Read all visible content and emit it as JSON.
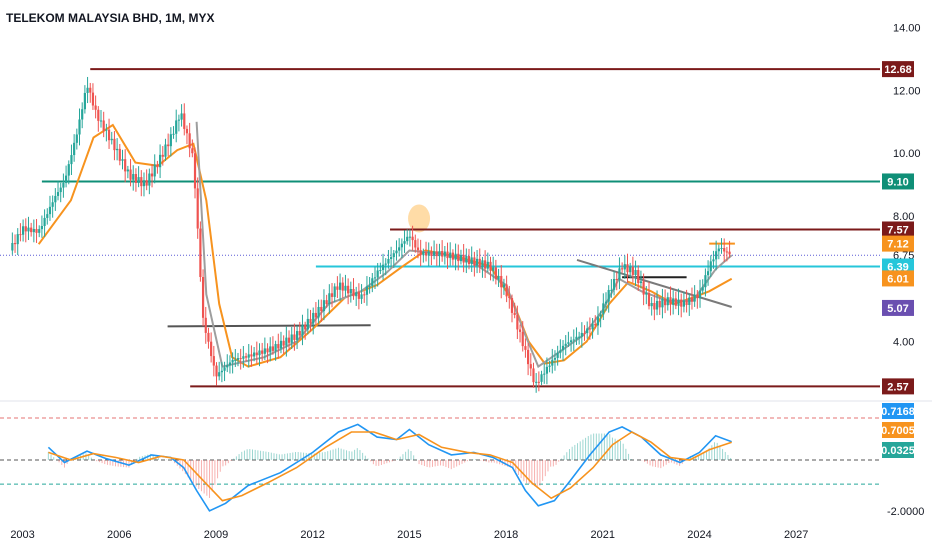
{
  "chart_data": {
    "type": "line",
    "title": "TELEKOM MALAYSIA BHD, 1M, MYX",
    "xlabel": "",
    "ylabel": "",
    "x_ticks": [
      "2003",
      "2006",
      "2009",
      "2012",
      "2015",
      "2018",
      "2021",
      "2024",
      "2027"
    ],
    "xlim": [
      2002.3,
      2029.6
    ],
    "price_panel": {
      "ylim": [
        2.2,
        14.5
      ],
      "y_ticks": [
        "14.00",
        "12.00",
        "10.00",
        "8.00",
        "6.75",
        "4.00"
      ],
      "y_tick_values": [
        14.0,
        12.0,
        10.0,
        8.0,
        6.75,
        4.0
      ],
      "last_price": 6.75,
      "series": [
        {
          "kind": "price",
          "color": "#26a69a",
          "down_color": "#ef5350",
          "points": [
            [
              2002.6,
              6.9
            ],
            [
              2003.0,
              7.6
            ],
            [
              2003.5,
              7.5
            ],
            [
              2004.0,
              8.6
            ],
            [
              2004.3,
              9.1
            ],
            [
              2004.7,
              10.7
            ],
            [
              2005.0,
              12.2
            ],
            [
              2005.3,
              11.2
            ],
            [
              2005.8,
              10.3
            ],
            [
              2006.3,
              9.3
            ],
            [
              2006.8,
              9.0
            ],
            [
              2007.2,
              9.7
            ],
            [
              2007.6,
              10.5
            ],
            [
              2007.9,
              11.3
            ],
            [
              2008.3,
              9.8
            ],
            [
              2008.6,
              4.7
            ],
            [
              2009.0,
              2.9
            ],
            [
              2009.5,
              3.4
            ],
            [
              2010.2,
              3.6
            ],
            [
              2010.8,
              3.8
            ],
            [
              2011.5,
              4.2
            ],
            [
              2012.2,
              5.0
            ],
            [
              2012.8,
              5.8
            ],
            [
              2013.5,
              5.4
            ],
            [
              2014.0,
              6.2
            ],
            [
              2014.6,
              6.9
            ],
            [
              2015.0,
              7.4
            ],
            [
              2015.3,
              6.8
            ],
            [
              2016.0,
              6.8
            ],
            [
              2016.8,
              6.6
            ],
            [
              2017.5,
              6.4
            ],
            [
              2018.0,
              5.6
            ],
            [
              2018.5,
              4.0
            ],
            [
              2018.9,
              2.6
            ],
            [
              2019.3,
              3.2
            ],
            [
              2019.8,
              3.9
            ],
            [
              2020.3,
              4.2
            ],
            [
              2020.8,
              4.6
            ],
            [
              2021.2,
              5.6
            ],
            [
              2021.6,
              6.4
            ],
            [
              2022.0,
              6.2
            ],
            [
              2022.5,
              5.1
            ],
            [
              2023.0,
              5.3
            ],
            [
              2023.5,
              5.2
            ],
            [
              2024.0,
              5.5
            ],
            [
              2024.3,
              6.4
            ],
            [
              2024.6,
              7.0
            ],
            [
              2025.0,
              6.75
            ]
          ]
        },
        {
          "kind": "moving-average",
          "color": "#f7931e",
          "points": [
            [
              2003.5,
              7.1
            ],
            [
              2004.5,
              8.5
            ],
            [
              2005.2,
              10.5
            ],
            [
              2005.8,
              10.9
            ],
            [
              2006.5,
              9.7
            ],
            [
              2007.2,
              9.6
            ],
            [
              2007.8,
              10.1
            ],
            [
              2008.3,
              10.3
            ],
            [
              2008.7,
              8.5
            ],
            [
              2009.1,
              5.2
            ],
            [
              2009.5,
              3.5
            ],
            [
              2010.0,
              3.2
            ],
            [
              2011.0,
              3.5
            ],
            [
              2012.0,
              4.4
            ],
            [
              2013.0,
              5.4
            ],
            [
              2014.0,
              5.8
            ],
            [
              2014.8,
              6.4
            ],
            [
              2015.5,
              6.9
            ],
            [
              2016.5,
              6.7
            ],
            [
              2017.5,
              6.4
            ],
            [
              2018.2,
              5.3
            ],
            [
              2018.7,
              4.0
            ],
            [
              2019.2,
              3.3
            ],
            [
              2019.8,
              3.4
            ],
            [
              2020.5,
              4.0
            ],
            [
              2021.2,
              5.2
            ],
            [
              2021.8,
              5.9
            ],
            [
              2022.5,
              5.6
            ],
            [
              2023.2,
              5.2
            ],
            [
              2023.8,
              5.4
            ],
            [
              2024.3,
              5.6
            ],
            [
              2025.0,
              6.0
            ]
          ]
        },
        {
          "kind": "moving-average",
          "color": "#9e9e9e",
          "points": [
            [
              2008.4,
              11.0
            ],
            [
              2008.7,
              5.5
            ],
            [
              2009.2,
              3.2
            ],
            [
              2010.5,
              3.5
            ],
            [
              2011.5,
              4.0
            ],
            [
              2012.5,
              5.2
            ],
            [
              2013.5,
              5.6
            ],
            [
              2014.3,
              6.2
            ],
            [
              2015.0,
              6.9
            ],
            [
              2016.0,
              6.8
            ],
            [
              2017.0,
              6.5
            ],
            [
              2018.0,
              5.8
            ],
            [
              2018.6,
              4.2
            ],
            [
              2019.0,
              3.2
            ],
            [
              2019.7,
              3.7
            ],
            [
              2020.4,
              4.2
            ],
            [
              2021.0,
              5.0
            ],
            [
              2021.5,
              6.0
            ],
            [
              2022.2,
              5.6
            ],
            [
              2023.0,
              5.3
            ],
            [
              2023.8,
              5.3
            ],
            [
              2024.5,
              6.3
            ],
            [
              2025.0,
              6.75
            ]
          ]
        }
      ],
      "levels": [
        {
          "label": "12.68",
          "value": 12.68,
          "color": "#7b1a1a",
          "from": 2005.1,
          "to": 2029.6
        },
        {
          "label": "9.10",
          "value": 9.1,
          "color": "#0f8f77",
          "from": 2003.6,
          "to": 2029.6
        },
        {
          "label": "7.57",
          "value": 7.57,
          "color": "#7b1a1a",
          "from": 2014.4,
          "to": 2029.6
        },
        {
          "label": "6.39",
          "value": 6.39,
          "color": "#26c6da",
          "from": 2012.1,
          "to": 2029.6
        },
        {
          "label": "2.57",
          "value": 2.57,
          "color": "#7b1a1a",
          "from": 2008.2,
          "to": 2029.6
        }
      ],
      "segments": [
        {
          "color": "#555555",
          "points": [
            [
              2007.5,
              4.48
            ],
            [
              2013.8,
              4.52
            ]
          ]
        },
        {
          "color": "#222222",
          "points": [
            [
              2021.6,
              6.05
            ],
            [
              2023.6,
              6.05
            ]
          ]
        },
        {
          "color": "#7a7a7a",
          "points": [
            [
              2020.2,
              6.6
            ],
            [
              2025.0,
              5.1
            ]
          ]
        },
        {
          "color": "#f7931e",
          "points": [
            [
              2024.3,
              7.12
            ],
            [
              2025.1,
              7.12
            ]
          ]
        }
      ],
      "highlight": {
        "x": 2015.3,
        "y": 7.92,
        "color": "#ffd08a"
      },
      "tags": [
        {
          "label": "12.68",
          "value": 12.68,
          "color": "#7b1a1a"
        },
        {
          "label": "9.10",
          "value": 9.1,
          "color": "#0f8f77"
        },
        {
          "label": "7.57",
          "value": 7.57,
          "color": "#7b1a1a"
        },
        {
          "label": "7.12",
          "value": 7.12,
          "color": "#f7931e"
        },
        {
          "label": "6.39",
          "value": 6.39,
          "color": "#26c6da"
        },
        {
          "label": "6.01",
          "value": 6.01,
          "color": "#f7931e"
        },
        {
          "label": "5.07",
          "value": 5.07,
          "color": "#6a4fb0"
        },
        {
          "label": "2.57",
          "value": 2.57,
          "color": "#7b1a1a"
        }
      ]
    },
    "macd_panel": {
      "ylim": [
        -2.2,
        2.2
      ],
      "y_ticks": [
        "-2.0000"
      ],
      "y_tick_values": [
        -2.0
      ],
      "guides": [
        {
          "value": 1.65,
          "color": "#e57373"
        },
        {
          "value": 0.0,
          "color": "#555555"
        },
        {
          "value": -0.95,
          "color": "#26a69a"
        }
      ],
      "macd": {
        "color": "#2196f3",
        "points": [
          [
            2003.8,
            0.5
          ],
          [
            2004.3,
            -0.1
          ],
          [
            2005.0,
            0.35
          ],
          [
            2005.6,
            0.05
          ],
          [
            2006.3,
            -0.2
          ],
          [
            2007.0,
            0.2
          ],
          [
            2007.6,
            0.1
          ],
          [
            2008.0,
            -0.3
          ],
          [
            2008.4,
            -1.2
          ],
          [
            2008.8,
            -2.0
          ],
          [
            2009.3,
            -1.7
          ],
          [
            2010.0,
            -1.0
          ],
          [
            2011.0,
            -0.5
          ],
          [
            2012.0,
            0.3
          ],
          [
            2012.8,
            1.1
          ],
          [
            2013.4,
            1.4
          ],
          [
            2014.0,
            0.9
          ],
          [
            2014.6,
            0.8
          ],
          [
            2015.0,
            1.2
          ],
          [
            2015.6,
            0.6
          ],
          [
            2016.3,
            0.2
          ],
          [
            2017.0,
            0.3
          ],
          [
            2017.6,
            0.1
          ],
          [
            2018.2,
            -0.3
          ],
          [
            2018.6,
            -1.2
          ],
          [
            2019.0,
            -1.8
          ],
          [
            2019.5,
            -1.6
          ],
          [
            2020.0,
            -0.8
          ],
          [
            2020.6,
            0.2
          ],
          [
            2021.2,
            1.1
          ],
          [
            2021.6,
            1.3
          ],
          [
            2022.2,
            0.9
          ],
          [
            2022.8,
            0.2
          ],
          [
            2023.4,
            -0.1
          ],
          [
            2024.0,
            0.3
          ],
          [
            2024.5,
            0.95
          ],
          [
            2025.0,
            0.72
          ]
        ]
      },
      "signal": {
        "color": "#f7931e",
        "points": [
          [
            2003.8,
            0.3
          ],
          [
            2004.5,
            0.0
          ],
          [
            2005.2,
            0.25
          ],
          [
            2005.9,
            0.1
          ],
          [
            2006.6,
            -0.1
          ],
          [
            2007.3,
            0.15
          ],
          [
            2008.0,
            0.0
          ],
          [
            2008.6,
            -0.8
          ],
          [
            2009.2,
            -1.6
          ],
          [
            2009.8,
            -1.4
          ],
          [
            2010.6,
            -0.9
          ],
          [
            2011.5,
            -0.3
          ],
          [
            2012.4,
            0.5
          ],
          [
            2013.2,
            1.1
          ],
          [
            2013.9,
            1.1
          ],
          [
            2014.6,
            0.8
          ],
          [
            2015.3,
            1.0
          ],
          [
            2016.0,
            0.5
          ],
          [
            2016.8,
            0.3
          ],
          [
            2017.5,
            0.2
          ],
          [
            2018.2,
            -0.1
          ],
          [
            2018.8,
            -0.9
          ],
          [
            2019.4,
            -1.5
          ],
          [
            2020.0,
            -1.1
          ],
          [
            2020.7,
            -0.3
          ],
          [
            2021.3,
            0.6
          ],
          [
            2021.9,
            1.1
          ],
          [
            2022.5,
            0.7
          ],
          [
            2023.1,
            0.1
          ],
          [
            2023.7,
            0.0
          ],
          [
            2024.3,
            0.4
          ],
          [
            2025.0,
            0.7
          ]
        ]
      },
      "tags": [
        {
          "label": "0.7168",
          "value": 0.7168,
          "color": "#2196f3"
        },
        {
          "label": "0.7005",
          "value": 0.7005,
          "color": "#f7931e"
        },
        {
          "label": "0.0325",
          "value": 0.0325,
          "color": "#26a69a"
        }
      ]
    }
  }
}
